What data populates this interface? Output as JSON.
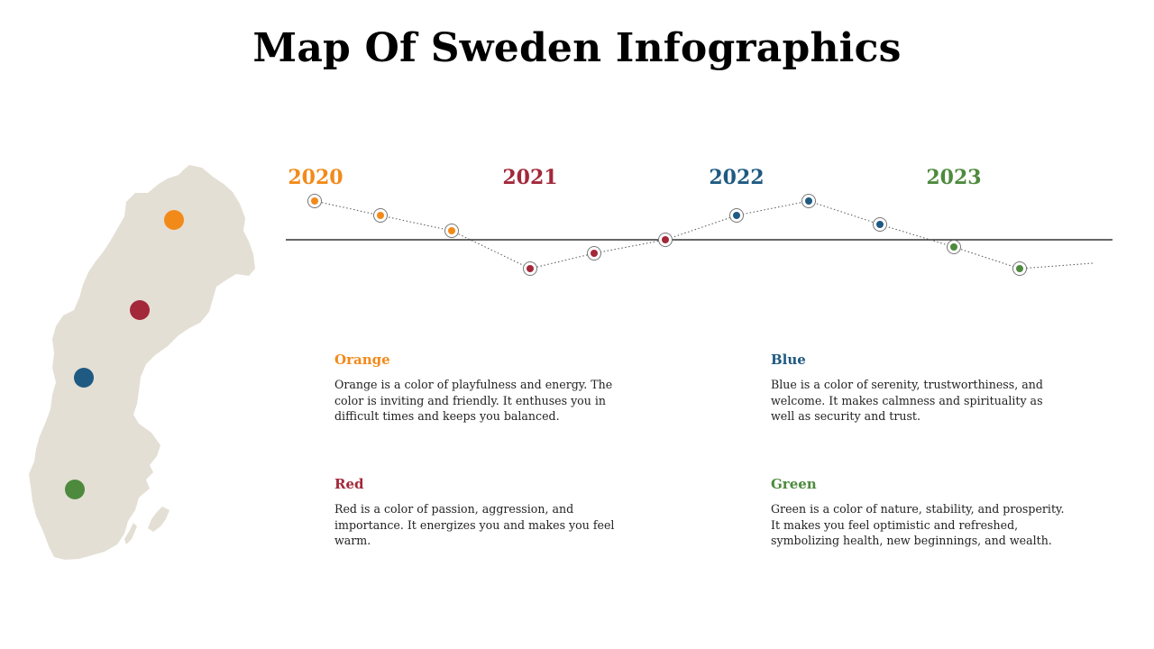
{
  "title": "Map Of Sweden Infographics",
  "colors": {
    "orange": "#f28a1a",
    "red": "#a3283a",
    "blue": "#1f5a82",
    "green": "#4d8a3d",
    "map_fill": "#e4dfd4",
    "axis": "#333333"
  },
  "timeline": {
    "years": [
      {
        "label": "2020",
        "color": "#f28a1a"
      },
      {
        "label": "2021",
        "color": "#a3283a"
      },
      {
        "label": "2022",
        "color": "#1f5a82"
      },
      {
        "label": "2023",
        "color": "#4d8a3d"
      }
    ]
  },
  "map_markers": [
    {
      "name": "orange",
      "color": "#f28a1a"
    },
    {
      "name": "red",
      "color": "#a3283a"
    },
    {
      "name": "blue",
      "color": "#1f5a82"
    },
    {
      "name": "green",
      "color": "#4d8a3d"
    }
  ],
  "cards": {
    "orange": {
      "title": "Orange",
      "text": "Orange is a color of playfulness and energy. The color is inviting and friendly. It enthuses you in difficult times and keeps you balanced."
    },
    "blue": {
      "title": "Blue",
      "text": "Blue is a color of serenity, trustworthiness, and welcome. It makes calmness and spirituality as well as security and trust."
    },
    "red": {
      "title": "Red",
      "text": "Red is a color of passion, aggression, and importance. It energizes you and makes you feel warm."
    },
    "green": {
      "title": "Green",
      "text": "Green is a color of nature, stability, and prosperity. It makes you feel optimistic and refreshed, symbolizing health, new beginnings, and wealth."
    }
  }
}
